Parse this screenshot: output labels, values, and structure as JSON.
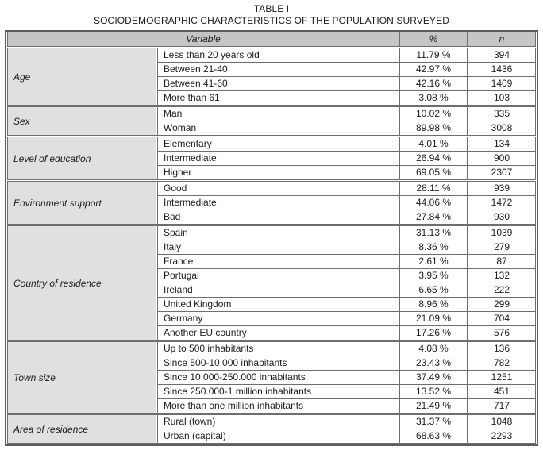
{
  "title": "TABLE I",
  "subtitle": "SOCIODEMOGRAPHIC CHARACTERISTICS OF THE POPULATION SURVEYED",
  "columns": {
    "variable": "Variable",
    "percent": "%",
    "n": "n"
  },
  "colors": {
    "header_bg": "#c5c5c5",
    "category_bg": "#e0e0e0",
    "border": "#6e6e6e",
    "outer_border": "#5e5e5e",
    "text": "#1c1c1c"
  },
  "groups": [
    {
      "category": "Age",
      "rows": [
        {
          "label": "Less than 20 years old",
          "percent": "11.79 %",
          "n": "394"
        },
        {
          "label": "Between 21-40",
          "percent": "42.97 %",
          "n": "1436"
        },
        {
          "label": "Between 41-60",
          "percent": "42.16 %",
          "n": "1409"
        },
        {
          "label": "More than 61",
          "percent": "3.08 %",
          "n": "103"
        }
      ]
    },
    {
      "category": "Sex",
      "rows": [
        {
          "label": "Man",
          "percent": "10.02 %",
          "n": "335"
        },
        {
          "label": "Woman",
          "percent": "89.98 %",
          "n": "3008"
        }
      ]
    },
    {
      "category": "Level of education",
      "rows": [
        {
          "label": "Elementary",
          "percent": "4.01 %",
          "n": "134"
        },
        {
          "label": "Intermediate",
          "percent": "26.94 %",
          "n": "900"
        },
        {
          "label": "Higher",
          "percent": "69.05 %",
          "n": "2307"
        }
      ]
    },
    {
      "category": "Environment support",
      "rows": [
        {
          "label": "Good",
          "percent": "28.11 %",
          "n": "939"
        },
        {
          "label": "Intermediate",
          "percent": "44.06 %",
          "n": "1472"
        },
        {
          "label": "Bad",
          "percent": "27.84 %",
          "n": "930"
        }
      ]
    },
    {
      "category": "Country of residence",
      "rows": [
        {
          "label": "Spain",
          "percent": "31.13 %",
          "n": "1039"
        },
        {
          "label": "Italy",
          "percent": "8.36 %",
          "n": "279"
        },
        {
          "label": "France",
          "percent": "2.61 %",
          "n": "87"
        },
        {
          "label": "Portugal",
          "percent": "3.95 %",
          "n": "132"
        },
        {
          "label": "Ireland",
          "percent": "6.65 %",
          "n": "222"
        },
        {
          "label": "United Kingdom",
          "percent": "8.96 %",
          "n": "299"
        },
        {
          "label": "Germany",
          "percent": "21.09 %",
          "n": "704"
        },
        {
          "label": "Another EU country",
          "percent": "17.26 %",
          "n": "576"
        }
      ]
    },
    {
      "category": "Town size",
      "rows": [
        {
          "label": "Up to 500 inhabitants",
          "percent": "4.08 %",
          "n": "136"
        },
        {
          "label": "Since 500-10.000 inhabitants",
          "percent": "23.43 %",
          "n": "782"
        },
        {
          "label": "Since 10.000-250.000 inhabitants",
          "percent": "37.49 %",
          "n": "1251"
        },
        {
          "label": "Since 250.000-1 million inhabitants",
          "percent": "13.52 %",
          "n": "451"
        },
        {
          "label": "More than one million inhabitants",
          "percent": "21.49 %",
          "n": "717"
        }
      ]
    },
    {
      "category": "Area of residence",
      "rows": [
        {
          "label": "Rural (town)",
          "percent": "31.37 %",
          "n": "1048"
        },
        {
          "label": "Urban (capital)",
          "percent": "68.63 %",
          "n": "2293"
        }
      ]
    }
  ]
}
